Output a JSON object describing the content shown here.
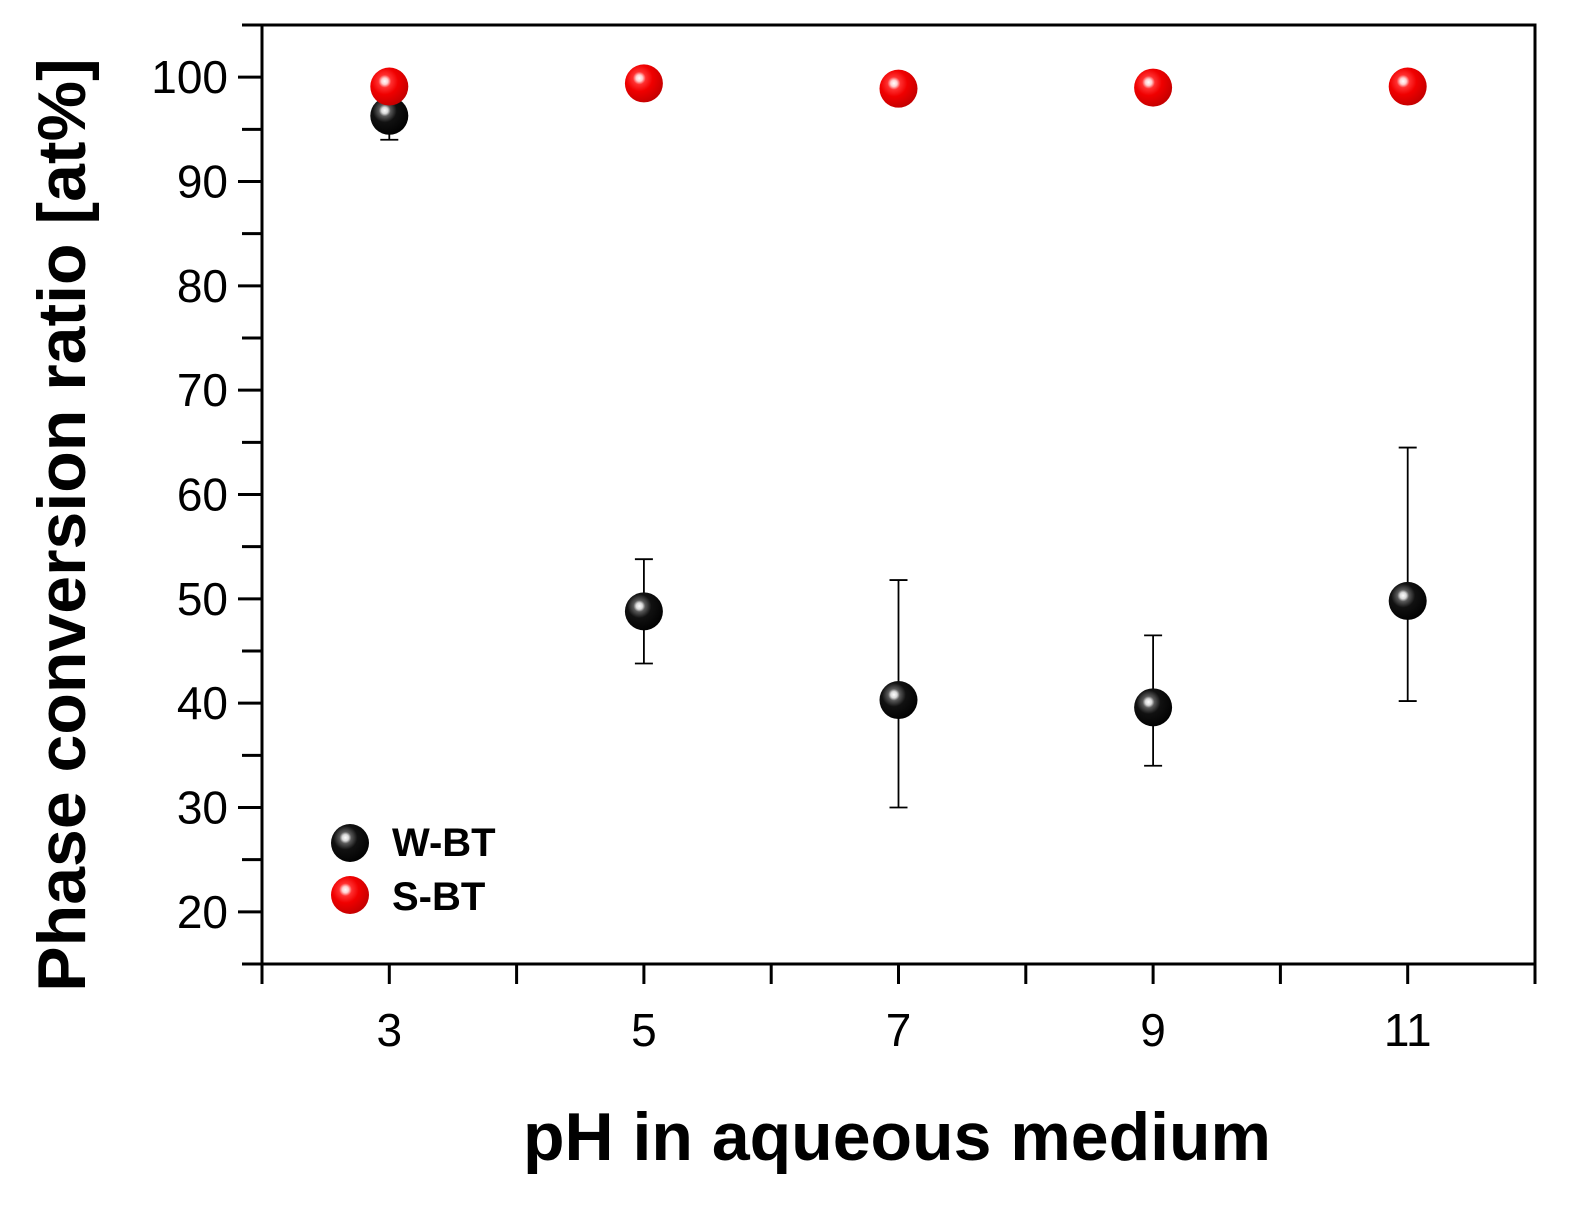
{
  "chart_data": {
    "type": "scatter",
    "xlabel": "pH in aqueous medium",
    "ylabel": "Phase conversion ratio [at%]",
    "xlim": [
      2,
      12
    ],
    "ylim": [
      15,
      105
    ],
    "x_ticks_major": [
      3,
      5,
      7,
      9,
      11
    ],
    "x_ticks_minor": [
      2,
      4,
      6,
      8,
      10,
      12
    ],
    "y_ticks": [
      20,
      30,
      40,
      50,
      60,
      70,
      80,
      90,
      100
    ],
    "y_tick_labels": [
      "20",
      "30",
      "40",
      "50",
      "60",
      "70",
      "80",
      "90",
      "100"
    ],
    "x_tick_labels": [
      "3",
      "5",
      "7",
      "9",
      "11"
    ],
    "grid": false,
    "legend_position": "bottom-left",
    "series": [
      {
        "name": "W-BT",
        "color": "#000000",
        "x": [
          3,
          5,
          7,
          9,
          11
        ],
        "y": [
          96.3,
          48.8,
          40.3,
          39.6,
          49.8
        ],
        "y_err_low": [
          94.0,
          43.8,
          30.0,
          34.0,
          40.2
        ],
        "y_err_high": [
          98.5,
          53.8,
          51.8,
          46.5,
          64.5
        ]
      },
      {
        "name": "S-BT",
        "color": "#ff0000",
        "x": [
          3,
          5,
          7,
          9,
          11
        ],
        "y": [
          99.1,
          99.4,
          98.9,
          99.0,
          99.1
        ]
      }
    ]
  }
}
